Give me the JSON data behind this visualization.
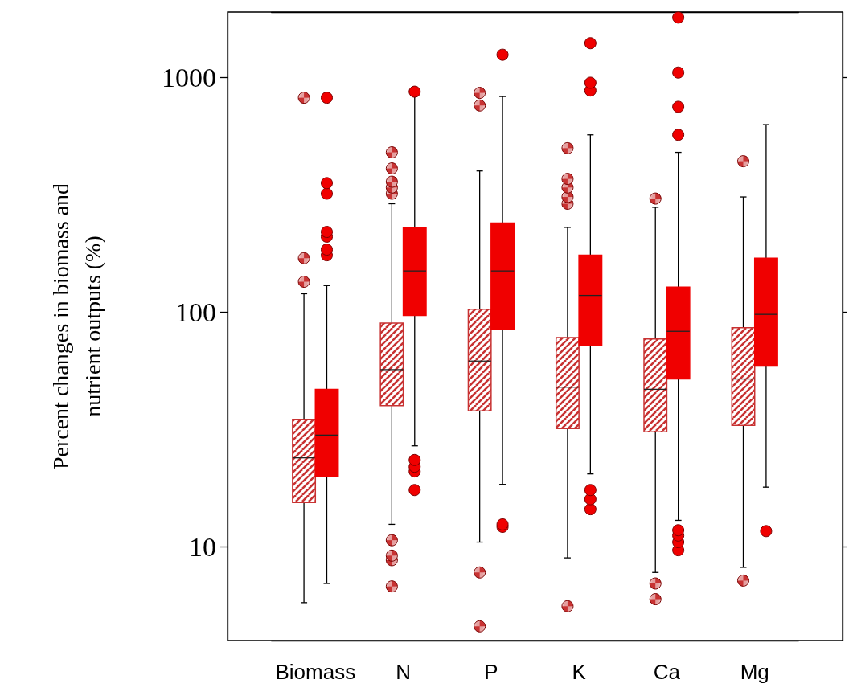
{
  "chart_data": {
    "type": "box",
    "ylabel": "Percent changes in biomass and\nnutrient outputs (%)",
    "categories": [
      "Biomass",
      "N",
      "P",
      "K",
      "Ca",
      "Mg"
    ],
    "log": "y",
    "ylim": [
      4,
      1900
    ],
    "yticks": [
      10,
      100,
      1000
    ],
    "series": [
      {
        "color": "#c83232",
        "boxes": [
          {
            "low": 5.8,
            "q1": 15.5,
            "median": 24,
            "q3": 35,
            "high": 120,
            "outliers": [
              135,
              170,
              820
            ]
          },
          {
            "low": 12.5,
            "q1": 40,
            "median": 57,
            "q3": 90,
            "high": 290,
            "outliers": [
              6.8,
              8.8,
              9.2,
              10.7,
              320,
              340,
              360,
              410,
              480
            ]
          },
          {
            "low": 10.5,
            "q1": 38,
            "median": 62,
            "q3": 103,
            "high": 400,
            "outliers": [
              4.6,
              7.8,
              760,
              860
            ]
          },
          {
            "low": 9,
            "q1": 32,
            "median": 48,
            "q3": 78,
            "high": 230,
            "outliers": [
              5.6,
              290,
              310,
              340,
              370,
              500
            ]
          },
          {
            "low": 7.8,
            "q1": 31,
            "median": 47,
            "q3": 77,
            "high": 280,
            "outliers": [
              6,
              7,
              305
            ]
          },
          {
            "low": 8.2,
            "q1": 33,
            "median": 52,
            "q3": 86,
            "high": 310,
            "outliers": [
              7.2,
              440
            ]
          }
        ]
      },
      {
        "color": "#f00000",
        "boxes": [
          {
            "low": 7,
            "q1": 20,
            "median": 30,
            "q3": 47,
            "high": 130,
            "outliers": [
              175,
              185,
              210,
              220,
              320,
              355,
              820
            ]
          },
          {
            "low": 27,
            "q1": 97,
            "median": 150,
            "q3": 230,
            "high": 850,
            "outliers": [
              17.5,
              21,
              22,
              23.5,
              870
            ]
          },
          {
            "low": 18.5,
            "q1": 85,
            "median": 150,
            "q3": 240,
            "high": 830,
            "outliers": [
              12.2,
              12.5,
              1250
            ]
          },
          {
            "low": 20.5,
            "q1": 72,
            "median": 118,
            "q3": 175,
            "high": 570,
            "outliers": [
              14.5,
              16,
              17.5,
              880,
              950,
              1400
            ]
          },
          {
            "low": 13,
            "q1": 52,
            "median": 83,
            "q3": 128,
            "high": 480,
            "outliers": [
              9.7,
              10.5,
              11.2,
              11.8,
              570,
              750,
              1050,
              1800
            ]
          },
          {
            "low": 18,
            "q1": 59,
            "median": 98,
            "q3": 170,
            "high": 630,
            "outliers": [
              11.7
            ]
          }
        ]
      }
    ]
  }
}
